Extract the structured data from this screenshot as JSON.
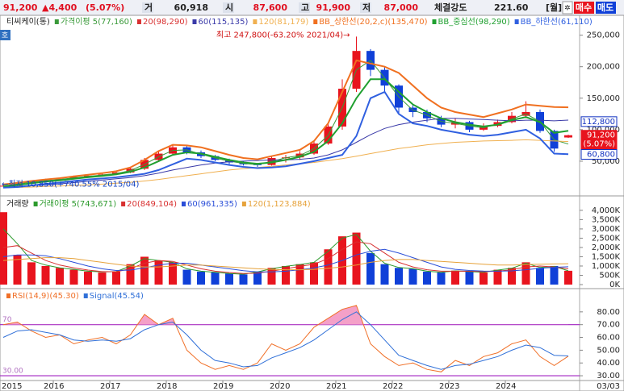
{
  "header": {
    "price": "91,200",
    "change": "▲4,400",
    "change_pct": "(5.07%)",
    "volume_label": "거",
    "volume": "60,918",
    "open_label": "시",
    "open": "87,600",
    "high_label": "고",
    "high": "91,900",
    "low_label": "저",
    "low": "87,000",
    "strength_label": "체결강도",
    "strength": "221.60",
    "period": "[월]",
    "buy": "매수",
    "sell": "매도",
    "side_tag": "호"
  },
  "chart_data": [
    {
      "type": "candlestick",
      "name": "티씨케이(통)",
      "up_color": "#e8141e",
      "down_color": "#1040d8",
      "open": [
        10850,
        11000,
        16000,
        18500,
        20000,
        22000,
        25000,
        27000,
        29000,
        32000,
        38000,
        52000,
        62000,
        72000,
        64000,
        58000,
        52000,
        48000,
        45000,
        44000,
        55000,
        56000,
        62000,
        78000,
        105000,
        165000,
        225000,
        195000,
        170000,
        135000,
        128000,
        118000,
        108000,
        112000,
        100000,
        106000,
        112000,
        122000,
        128000,
        98000,
        87600
      ],
      "high": [
        12500,
        17000,
        19500,
        22000,
        24000,
        27000,
        29500,
        31000,
        34000,
        41000,
        55000,
        66000,
        76000,
        74000,
        67000,
        60000,
        54000,
        50000,
        47000,
        58000,
        60000,
        66000,
        82000,
        112000,
        180000,
        247800,
        228000,
        200000,
        172000,
        140000,
        132000,
        122000,
        118000,
        114000,
        110000,
        116000,
        128000,
        145000,
        132000,
        100000,
        91900
      ],
      "low": [
        10850,
        10500,
        15000,
        17500,
        19000,
        21000,
        24000,
        26000,
        28000,
        31000,
        36000,
        50000,
        60000,
        61000,
        55000,
        50000,
        45000,
        43000,
        41000,
        43000,
        48000,
        52000,
        60000,
        76000,
        100000,
        160000,
        185000,
        160000,
        125000,
        120000,
        112000,
        104000,
        102000,
        96000,
        98000,
        104000,
        110000,
        118000,
        95000,
        65000,
        87000
      ],
      "close": [
        11000,
        16000,
        18500,
        20000,
        22000,
        25000,
        27000,
        29000,
        32000,
        38000,
        52000,
        62000,
        72000,
        64000,
        58000,
        52000,
        48000,
        45000,
        44000,
        55000,
        56000,
        62000,
        78000,
        105000,
        165000,
        225000,
        195000,
        170000,
        135000,
        128000,
        118000,
        108000,
        112000,
        100000,
        106000,
        112000,
        122000,
        128000,
        98000,
        70000,
        91200
      ],
      "series": [
        {
          "name": "가격이평 5(77,160)",
          "color": "#3a9a3a",
          "width": 1,
          "values": [
            10900,
            13500,
            17200,
            19200,
            21000,
            23500,
            26000,
            28000,
            30500,
            35000,
            45000,
            57000,
            67000,
            68000,
            61000,
            55000,
            50000,
            46500,
            44500,
            49500,
            55500,
            59000,
            70000,
            91000,
            135000,
            195000,
            210000,
            182000,
            152000,
            131000,
            123000,
            113000,
            110000,
            106000,
            103000,
            109000,
            117000,
            125000,
            113000,
            84000,
            77160
          ]
        },
        {
          "name": "20(98,290)",
          "color": "#d83030",
          "width": 1,
          "values": [
            10000,
            12000,
            15000,
            17500,
            19500,
            22000,
            24500,
            26500,
            29000,
            33000,
            40000,
            50000,
            60000,
            64000,
            62000,
            57000,
            52000,
            48000,
            46000,
            48000,
            52000,
            57000,
            65000,
            82000,
            110000,
            150000,
            180000,
            180000,
            160000,
            140000,
            128000,
            118000,
            112000,
            108000,
            105000,
            108000,
            115000,
            120000,
            112000,
            95000,
            98290
          ]
        },
        {
          "name": "60(115,135)",
          "color": "#3a3aa8",
          "width": 1,
          "values": [
            9000,
            10000,
            11000,
            12500,
            14000,
            16000,
            18000,
            20000,
            22000,
            24000,
            27000,
            31000,
            36000,
            40000,
            44000,
            47000,
            49000,
            50000,
            51000,
            52000,
            52000,
            53000,
            55000,
            60000,
            68000,
            80000,
            92000,
            102000,
            108000,
            112000,
            115000,
            118000,
            118000,
            117000,
            116000,
            115000,
            114000,
            115000,
            115000,
            114000,
            115135
          ]
        },
        {
          "name": "120(81,179)",
          "color": "#f0b050",
          "width": 1,
          "values": [
            8000,
            8500,
            9000,
            9800,
            10500,
            11500,
            12500,
            13500,
            15000,
            16500,
            18500,
            21000,
            24000,
            27000,
            30000,
            33000,
            36000,
            38000,
            40000,
            42000,
            44000,
            46000,
            48000,
            51000,
            54000,
            58000,
            62000,
            66000,
            70000,
            73000,
            76000,
            78000,
            80000,
            81000,
            82000,
            82500,
            83000,
            84000,
            83000,
            82000,
            81179
          ]
        },
        {
          "name": "BB_상한선(20,2,c)(135,470)",
          "color": "#f07020",
          "width": 2,
          "values": [
            13000,
            15500,
            18500,
            21000,
            23000,
            26000,
            28500,
            31000,
            34000,
            40000,
            52000,
            66000,
            76000,
            75000,
            72000,
            66000,
            60000,
            55000,
            53000,
            58000,
            63000,
            68000,
            82000,
            110000,
            160000,
            210000,
            205000,
            200000,
            190000,
            170000,
            150000,
            135000,
            128000,
            124000,
            120000,
            126000,
            132000,
            140000,
            138000,
            136000,
            135470
          ]
        },
        {
          "name": "BB_중심선(98,290)",
          "color": "#20a030",
          "width": 2,
          "values": [
            10000,
            12000,
            15000,
            17500,
            19500,
            22000,
            24500,
            26500,
            29000,
            33000,
            40000,
            50000,
            60000,
            64000,
            62000,
            57000,
            52000,
            48000,
            46000,
            48000,
            52000,
            57000,
            65000,
            82000,
            110000,
            150000,
            180000,
            180000,
            160000,
            140000,
            128000,
            118000,
            112000,
            108000,
            105000,
            108000,
            115000,
            120000,
            112000,
            95000,
            98290
          ]
        },
        {
          "name": "BB_하한선(61,110)",
          "color": "#3060e0",
          "width": 2,
          "values": [
            8000,
            9000,
            11500,
            14000,
            16000,
            18500,
            21000,
            22500,
            24500,
            27000,
            30000,
            36000,
            45000,
            54000,
            52000,
            48000,
            44000,
            41000,
            39000,
            40000,
            42000,
            46000,
            50000,
            55000,
            60000,
            90000,
            150000,
            160000,
            125000,
            110000,
            106000,
            100000,
            96000,
            92000,
            90000,
            92000,
            96000,
            100000,
            86000,
            62000,
            61110
          ]
        }
      ],
      "ylim": [
        0,
        270000
      ],
      "yticks": [
        {
          "value": 50000,
          "label": "50,000"
        },
        {
          "value": 100000,
          "label": "100,000"
        },
        {
          "value": 150000,
          "label": "150,000"
        },
        {
          "value": 200000,
          "label": "200,000"
        },
        {
          "value": 250000,
          "label": "250,000"
        }
      ],
      "annotations": [
        {
          "text": "최고 247,800(-63.20% 2021/04)→",
          "index": 25,
          "value": 247800,
          "color": "#d01010"
        },
        {
          "text": "←최저 10,850(+740.55% 2015/04)",
          "index": 0,
          "value": 10850,
          "color": "#1040c0"
        }
      ],
      "price_tags": [
        {
          "value": 112800,
          "label": "112,800",
          "color": "#1030c0",
          "fill": "#ffffff"
        },
        {
          "value": 91200,
          "label": "91,200",
          "sub": "(5.07%)",
          "color": "#ffffff",
          "fill": "#e8141e"
        },
        {
          "value": 60800,
          "label": "60,800",
          "color": "#1030c0",
          "fill": "#ffffff"
        }
      ]
    },
    {
      "type": "bar",
      "title": "거래량",
      "values": [
        3900000,
        1600000,
        1200000,
        1000000,
        900000,
        800000,
        700000,
        650000,
        700000,
        1100000,
        1500000,
        1300000,
        1200000,
        800000,
        700000,
        650000,
        600000,
        550000,
        700000,
        900000,
        1000000,
        1100000,
        1200000,
        1900000,
        2600000,
        2800000,
        1700000,
        1100000,
        900000,
        850000,
        700000,
        650000,
        750000,
        700000,
        650000,
        800000,
        900000,
        1200000,
        900000,
        1000000,
        743671
      ],
      "series": [
        {
          "name": "거래이평 5(743,671)",
          "color": "#2c9a2c",
          "values": [
            3000000,
            2200000,
            1300000,
            1050000,
            900000,
            820000,
            720000,
            680000,
            700000,
            1000000,
            1400000,
            1300000,
            1200000,
            850000,
            720000,
            660000,
            600000,
            560000,
            680000,
            850000,
            980000,
            1080000,
            1200000,
            1800000,
            2500000,
            2700000,
            1800000,
            1150000,
            920000,
            860000,
            720000,
            660000,
            740000,
            700000,
            660000,
            780000,
            880000,
            1150000,
            920000,
            980000,
            743671
          ]
        },
        {
          "name": "20(849,104)",
          "color": "#d83030",
          "values": [
            2000000,
            2100000,
            1700000,
            1300000,
            1050000,
            900000,
            780000,
            700000,
            690000,
            850000,
            1150000,
            1300000,
            1250000,
            1050000,
            850000,
            720000,
            650000,
            600000,
            620000,
            720000,
            850000,
            980000,
            1100000,
            1400000,
            1900000,
            2300000,
            2200000,
            1700000,
            1200000,
            950000,
            800000,
            720000,
            720000,
            720000,
            700000,
            720000,
            800000,
            950000,
            1000000,
            950000,
            849104
          ]
        },
        {
          "name": "60(961,335)",
          "color": "#2a4ed8",
          "values": [
            1500000,
            1600000,
            1600000,
            1550000,
            1400000,
            1200000,
            1000000,
            850000,
            760000,
            780000,
            900000,
            1050000,
            1150000,
            1150000,
            1050000,
            950000,
            850000,
            750000,
            680000,
            680000,
            720000,
            800000,
            900000,
            1050000,
            1300000,
            1600000,
            1800000,
            1900000,
            1700000,
            1450000,
            1200000,
            950000,
            820000,
            760000,
            730000,
            720000,
            740000,
            800000,
            880000,
            930000,
            961335
          ]
        },
        {
          "name": "120(1,123,884)",
          "color": "#e6a23a",
          "values": [
            1300000,
            1350000,
            1400000,
            1450000,
            1450000,
            1400000,
            1300000,
            1200000,
            1100000,
            1000000,
            950000,
            950000,
            1000000,
            1050000,
            1050000,
            1000000,
            950000,
            900000,
            850000,
            820000,
            800000,
            800000,
            820000,
            880000,
            950000,
            1050000,
            1200000,
            1300000,
            1350000,
            1350000,
            1300000,
            1250000,
            1200000,
            1150000,
            1100000,
            1050000,
            1050000,
            1080000,
            1100000,
            1110000,
            1123884
          ]
        }
      ],
      "ylim": [
        0,
        4300000
      ],
      "yticks": [
        {
          "value": 0,
          "label": "0K"
        },
        {
          "value": 500000,
          "label": "500K"
        },
        {
          "value": 1000000,
          "label": "1,000K"
        },
        {
          "value": 1500000,
          "label": "1,500K"
        },
        {
          "value": 2000000,
          "label": "2,000K"
        },
        {
          "value": 2500000,
          "label": "2,500K"
        },
        {
          "value": 3000000,
          "label": "3,000K"
        },
        {
          "value": 3500000,
          "label": "3,500K"
        },
        {
          "value": 4000000,
          "label": "4,000K"
        }
      ]
    },
    {
      "type": "line",
      "categories": [
        "2015",
        null,
        null,
        null,
        "2016",
        null,
        null,
        null,
        "2017",
        null,
        null,
        null,
        "2018",
        null,
        null,
        null,
        "2019",
        null,
        null,
        null,
        "2020",
        null,
        null,
        null,
        "2021",
        null,
        null,
        null,
        "2022",
        null,
        null,
        null,
        "2023",
        null,
        null,
        null,
        "2024",
        null,
        null,
        null,
        "03/03"
      ],
      "series": [
        {
          "name": "RSI(14,9)(45.30)",
          "color": "#f07028",
          "fill": "#f4a0c8",
          "values": [
            70,
            72,
            65,
            60,
            62,
            55,
            58,
            60,
            55,
            62,
            78,
            70,
            75,
            50,
            40,
            35,
            38,
            35,
            40,
            55,
            50,
            55,
            68,
            75,
            82,
            85,
            55,
            45,
            38,
            40,
            35,
            33,
            42,
            38,
            45,
            48,
            55,
            58,
            45,
            38,
            45.3
          ]
        },
        {
          "name": "Signal(45.54)",
          "color": "#3070d8",
          "values": [
            60,
            65,
            66,
            64,
            62,
            58,
            57,
            58,
            57,
            59,
            66,
            70,
            72,
            62,
            50,
            42,
            40,
            37,
            38,
            44,
            48,
            52,
            58,
            66,
            74,
            80,
            70,
            58,
            46,
            42,
            38,
            35,
            38,
            39,
            42,
            45,
            50,
            54,
            52,
            46,
            45.54
          ]
        }
      ],
      "reference_lines": [
        {
          "value": 70,
          "label": "70"
        },
        {
          "value": 30,
          "label": "30.00"
        }
      ],
      "reference_color": "#a020c0",
      "ylim": [
        25,
        90
      ],
      "yticks": [
        {
          "value": 30,
          "label": "30.00"
        },
        {
          "value": 40,
          "label": "40.00"
        },
        {
          "value": 50,
          "label": "50.00"
        },
        {
          "value": 60,
          "label": "60.00"
        },
        {
          "value": 70,
          "label": "70.00"
        },
        {
          "value": 80,
          "label": "80.00"
        }
      ]
    }
  ]
}
